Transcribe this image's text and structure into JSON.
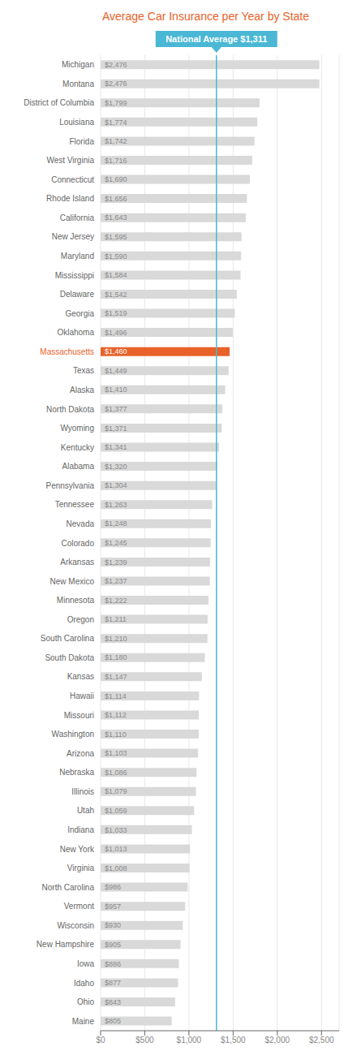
{
  "chart_data": {
    "type": "bar",
    "orientation": "horizontal",
    "title": "Average Car Insurance per Year by State",
    "categories": [
      "Michigan",
      "Montana",
      "District of Columbia",
      "Louisiana",
      "Florida",
      "West Virginia",
      "Connecticut",
      "Rhode Island",
      "California",
      "New Jersey",
      "Maryland",
      "Mississippi",
      "Delaware",
      "Georgia",
      "Oklahoma",
      "Massachusetts",
      "Texas",
      "Alaska",
      "North Dakota",
      "Wyoming",
      "Kentucky",
      "Alabama",
      "Pennsylvania",
      "Tennessee",
      "Nevada",
      "Colorado",
      "Arkansas",
      "New Mexico",
      "Minnesota",
      "Oregon",
      "South Carolina",
      "South Dakota",
      "Kansas",
      "Hawaii",
      "Missouri",
      "Washington",
      "Arizona",
      "Nebraska",
      "Illinois",
      "Utah",
      "Indiana",
      "New York",
      "Virginia",
      "North Carolina",
      "Vermont",
      "Wisconsin",
      "New Hampshire",
      "Iowa",
      "Idaho",
      "Ohio",
      "Maine"
    ],
    "values": [
      2476,
      2476,
      1799,
      1774,
      1742,
      1716,
      1690,
      1656,
      1643,
      1595,
      1590,
      1584,
      1542,
      1519,
      1496,
      1460,
      1449,
      1410,
      1377,
      1371,
      1341,
      1320,
      1304,
      1263,
      1248,
      1245,
      1239,
      1237,
      1222,
      1211,
      1210,
      1180,
      1147,
      1114,
      1112,
      1110,
      1103,
      1086,
      1079,
      1059,
      1033,
      1013,
      1008,
      986,
      957,
      930,
      905,
      886,
      877,
      843,
      805
    ],
    "value_labels": [
      "$2,476",
      "$2,476",
      "$1,799",
      "$1,774",
      "$1,742",
      "$1,716",
      "$1,690",
      "$1,656",
      "$1,643",
      "$1,595",
      "$1,590",
      "$1,584",
      "$1,542",
      "$1,519",
      "$1,496",
      "$1,460",
      "$1,449",
      "$1,410",
      "$1,377",
      "$1,371",
      "$1,341",
      "$1,320",
      "$1,304",
      "$1,263",
      "$1,248",
      "$1,245",
      "$1,239",
      "$1,237",
      "$1,222",
      "$1,211",
      "$1,210",
      "$1,180",
      "$1,147",
      "$1,114",
      "$1,112",
      "$1,110",
      "$1,103",
      "$1,086",
      "$1,079",
      "$1,059",
      "$1,033",
      "$1,013",
      "$1,008",
      "$986",
      "$957",
      "$930",
      "$905",
      "$886",
      "$877",
      "$843",
      "$805"
    ],
    "data_labels": true,
    "color": "#d9d9d9",
    "colors": [
      "#d9d9d9",
      "#d9d9d9",
      "#d9d9d9",
      "#d9d9d9",
      "#d9d9d9",
      "#d9d9d9",
      "#d9d9d9",
      "#d9d9d9",
      "#d9d9d9",
      "#d9d9d9",
      "#d9d9d9",
      "#d9d9d9",
      "#d9d9d9",
      "#d9d9d9",
      "#d9d9d9",
      "#e8622a",
      "#d9d9d9",
      "#d9d9d9",
      "#d9d9d9",
      "#d9d9d9",
      "#d9d9d9",
      "#d9d9d9",
      "#d9d9d9",
      "#d9d9d9",
      "#d9d9d9",
      "#d9d9d9",
      "#d9d9d9",
      "#d9d9d9",
      "#d9d9d9",
      "#d9d9d9",
      "#d9d9d9",
      "#d9d9d9",
      "#d9d9d9",
      "#d9d9d9",
      "#d9d9d9",
      "#d9d9d9",
      "#d9d9d9",
      "#d9d9d9",
      "#d9d9d9",
      "#d9d9d9",
      "#d9d9d9",
      "#d9d9d9",
      "#d9d9d9",
      "#d9d9d9",
      "#d9d9d9",
      "#d9d9d9",
      "#d9d9d9",
      "#d9d9d9",
      "#d9d9d9",
      "#d9d9d9",
      "#d9d9d9"
    ],
    "annotations": [
      {
        "text": "National Average $1,311",
        "value": 1311,
        "color": "#4ab8d4"
      }
    ],
    "xlim": [
      0,
      2700
    ],
    "xticks": [
      {
        "value": 0,
        "label": "$0"
      },
      {
        "value": 500,
        "label": "$500"
      },
      {
        "value": 1000,
        "label": "$1,000"
      },
      {
        "value": 1500,
        "label": "$1,500"
      },
      {
        "value": 2000,
        "label": "$2,000"
      },
      {
        "value": 2500,
        "label": "$2,500"
      }
    ],
    "grid": true
  }
}
